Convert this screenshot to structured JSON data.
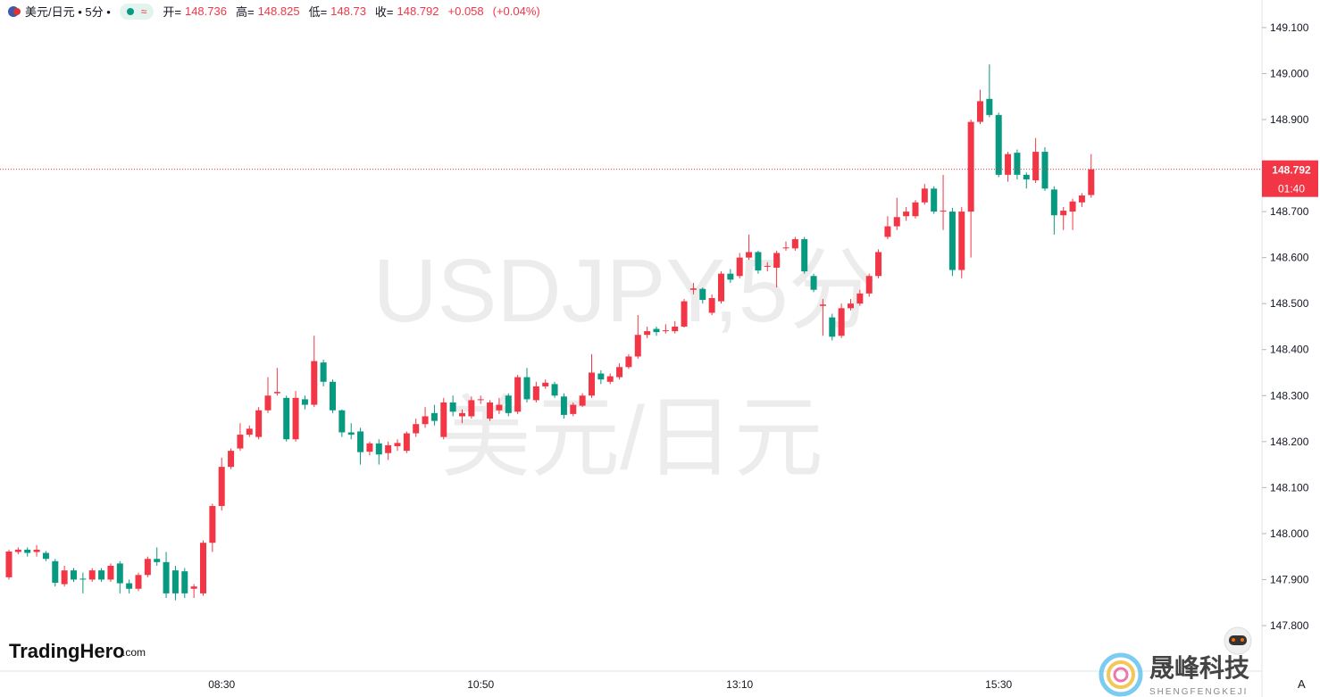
{
  "header": {
    "title": "美元/日元 • 5分 •",
    "open_label": "开=",
    "high_label": "高=",
    "low_label": "低=",
    "close_label": "收=",
    "change": "+0.058",
    "change_pct": "(+0.04%)"
  },
  "watermark": {
    "symbol": "USDJPY,5分",
    "name": "美元/日元"
  },
  "branding": {
    "left_brand": "TradingHero",
    "left_domain": ".com",
    "right_brand": "晟峰科技",
    "right_sub": "SHENGFENGKEJI",
    "auto_button": "A"
  },
  "chart_data": {
    "type": "candlestick",
    "up_color": "#f23645",
    "down_color": "#089981",
    "countdown": "01:40",
    "categories": [
      null,
      null,
      null,
      null,
      null,
      null,
      null,
      null,
      null,
      null,
      null,
      null,
      null,
      null,
      null,
      null,
      null,
      null,
      null,
      null,
      null,
      null,
      null,
      "08:30",
      null,
      null,
      null,
      null,
      null,
      null,
      null,
      null,
      null,
      null,
      null,
      null,
      null,
      null,
      null,
      null,
      null,
      null,
      null,
      null,
      null,
      null,
      null,
      null,
      null,
      null,
      null,
      "10:50",
      null,
      null,
      null,
      null,
      null,
      null,
      null,
      null,
      null,
      null,
      null,
      null,
      null,
      null,
      null,
      null,
      null,
      null,
      null,
      null,
      null,
      null,
      null,
      null,
      null,
      null,
      null,
      "13:10",
      null,
      null,
      null,
      null,
      null,
      null,
      null,
      null,
      null,
      null,
      null,
      null,
      null,
      null,
      null,
      null,
      null,
      null,
      null,
      null,
      null,
      null,
      null,
      null,
      null,
      null,
      null,
      "15:30",
      null,
      null,
      null,
      null,
      null,
      null,
      null,
      null,
      null,
      null
    ],
    "open": [
      147.905,
      147.96,
      147.965,
      147.96,
      147.958,
      147.94,
      147.89,
      147.92,
      147.902,
      147.9,
      147.92,
      147.9,
      147.935,
      147.892,
      147.88,
      147.91,
      147.945,
      147.938,
      147.92,
      147.918,
      147.88,
      147.87,
      147.98,
      148.06,
      148.145,
      148.185,
      148.215,
      148.21,
      148.268,
      148.305,
      148.295,
      148.205,
      148.292,
      148.28,
      148.372,
      148.33,
      148.268,
      148.22,
      148.222,
      148.178,
      148.196,
      148.175,
      148.19,
      148.18,
      148.218,
      148.238,
      148.262,
      148.21,
      148.285,
      148.255,
      148.255,
      148.29,
      148.25,
      148.268,
      148.3,
      148.265,
      148.34,
      148.29,
      148.32,
      148.325,
      148.298,
      148.26,
      148.278,
      148.3,
      148.348,
      148.33,
      148.34,
      148.362,
      148.385,
      148.432,
      148.445,
      148.44,
      148.44,
      148.45,
      148.53,
      148.532,
      148.48,
      148.505,
      148.565,
      148.56,
      148.6,
      148.612,
      148.58,
      148.578,
      148.62,
      148.62,
      148.64,
      148.56,
      148.495,
      148.47,
      148.43,
      148.49,
      148.5,
      148.522,
      148.56,
      148.645,
      148.668,
      148.69,
      148.69,
      148.72,
      148.75,
      148.7,
      148.7,
      148.573,
      148.7,
      148.895,
      148.945,
      148.91,
      148.78,
      148.828,
      148.78,
      148.768,
      148.83,
      148.748,
      148.692,
      148.7,
      148.72,
      148.736
    ],
    "high": [
      147.965,
      147.97,
      147.97,
      147.975,
      147.962,
      147.945,
      147.93,
      147.925,
      147.915,
      147.925,
      147.925,
      147.935,
      147.94,
      147.9,
      147.915,
      147.95,
      147.97,
      147.96,
      147.93,
      147.925,
      147.89,
      147.985,
      148.065,
      148.165,
      148.185,
      148.24,
      148.235,
      148.275,
      148.34,
      148.36,
      148.3,
      148.31,
      148.3,
      148.43,
      148.378,
      148.335,
      148.27,
      148.24,
      148.23,
      148.2,
      148.205,
      148.2,
      148.205,
      148.222,
      148.25,
      148.275,
      148.28,
      148.295,
      148.3,
      148.27,
      148.298,
      148.3,
      148.29,
      148.295,
      148.305,
      148.345,
      148.36,
      148.33,
      148.335,
      148.33,
      148.305,
      148.285,
      148.305,
      148.39,
      148.355,
      148.348,
      148.37,
      148.39,
      148.475,
      148.45,
      148.45,
      148.455,
      148.462,
      148.51,
      148.545,
      148.535,
      148.52,
      148.57,
      148.575,
      148.61,
      148.65,
      148.615,
      148.59,
      148.615,
      148.635,
      148.645,
      148.645,
      148.565,
      148.51,
      148.478,
      148.5,
      148.51,
      148.53,
      148.565,
      148.618,
      148.69,
      148.73,
      148.71,
      148.725,
      148.76,
      148.755,
      148.78,
      148.708,
      148.71,
      148.9,
      148.965,
      149.02,
      148.915,
      148.83,
      148.835,
      148.785,
      148.86,
      148.84,
      148.755,
      148.71,
      148.728,
      148.74,
      148.825
    ],
    "low": [
      147.9,
      147.955,
      147.95,
      147.95,
      147.94,
      147.885,
      147.885,
      147.895,
      147.87,
      147.895,
      147.895,
      147.895,
      147.87,
      147.87,
      147.875,
      147.905,
      147.93,
      147.86,
      147.855,
      147.86,
      147.86,
      147.865,
      147.96,
      148.05,
      148.14,
      148.18,
      148.21,
      148.205,
      148.262,
      148.3,
      148.2,
      148.2,
      148.27,
      148.275,
      148.32,
      148.262,
      148.21,
      148.205,
      148.15,
      148.17,
      148.15,
      148.16,
      148.18,
      148.175,
      148.21,
      148.23,
      148.235,
      148.205,
      148.255,
      148.24,
      148.25,
      148.282,
      148.245,
      148.26,
      148.255,
      148.26,
      148.285,
      148.285,
      148.315,
      148.295,
      148.25,
      148.255,
      148.275,
      148.295,
      148.325,
      148.325,
      148.335,
      148.358,
      148.38,
      148.425,
      148.43,
      148.435,
      148.435,
      148.448,
      148.52,
      148.5,
      148.475,
      148.5,
      148.545,
      148.555,
      148.595,
      148.565,
      148.57,
      148.535,
      148.615,
      148.615,
      148.565,
      148.525,
      148.43,
      148.42,
      148.425,
      148.485,
      148.495,
      148.515,
      148.555,
      148.64,
      148.66,
      148.68,
      148.685,
      148.715,
      148.695,
      148.66,
      148.56,
      148.555,
      148.6,
      148.89,
      148.905,
      148.775,
      148.765,
      148.77,
      148.75,
      148.762,
      148.745,
      148.65,
      148.66,
      148.66,
      148.71,
      148.73
    ],
    "close": [
      147.961,
      147.965,
      147.958,
      147.965,
      147.945,
      147.893,
      147.92,
      147.9,
      147.9,
      147.92,
      147.9,
      147.93,
      147.892,
      147.88,
      147.91,
      147.945,
      147.938,
      147.87,
      147.87,
      147.87,
      147.885,
      147.98,
      148.06,
      148.145,
      148.18,
      148.215,
      148.228,
      148.268,
      148.3,
      148.308,
      148.205,
      148.295,
      148.28,
      148.375,
      148.33,
      148.268,
      148.22,
      148.215,
      148.177,
      148.196,
      148.172,
      148.192,
      148.197,
      148.218,
      148.238,
      148.255,
      148.245,
      148.285,
      148.265,
      148.262,
      148.29,
      148.292,
      148.285,
      148.28,
      148.262,
      148.34,
      148.292,
      148.32,
      148.328,
      148.3,
      148.258,
      148.28,
      148.3,
      148.35,
      148.335,
      148.342,
      148.362,
      148.385,
      148.432,
      148.44,
      148.438,
      148.442,
      148.45,
      148.505,
      148.533,
      148.508,
      148.512,
      148.565,
      148.552,
      148.6,
      148.612,
      148.572,
      148.582,
      148.61,
      148.622,
      148.64,
      148.57,
      148.53,
      148.498,
      148.428,
      148.49,
      148.5,
      148.522,
      148.56,
      148.612,
      148.668,
      148.688,
      148.7,
      148.72,
      148.75,
      148.7,
      148.702,
      148.573,
      148.7,
      148.895,
      148.94,
      148.91,
      148.78,
      148.825,
      148.78,
      148.77,
      148.83,
      148.75,
      148.692,
      148.702,
      148.722,
      148.735,
      148.792
    ],
    "ylim": [
      147.701,
      149.16
    ],
    "yticks": [
      {
        "value": 147.8,
        "label": "147.800"
      },
      {
        "value": 147.9,
        "label": "147.900"
      },
      {
        "value": 148.0,
        "label": "148.000"
      },
      {
        "value": 148.1,
        "label": "148.100"
      },
      {
        "value": 148.2,
        "label": "148.200"
      },
      {
        "value": 148.3,
        "label": "148.300"
      },
      {
        "value": 148.4,
        "label": "148.400"
      },
      {
        "value": 148.5,
        "label": "148.500"
      },
      {
        "value": 148.6,
        "label": "148.600"
      },
      {
        "value": 148.7,
        "label": "148.700"
      },
      {
        "value": 148.8,
        "label": "148.800"
      },
      {
        "value": 148.9,
        "label": "148.900"
      },
      {
        "value": 149.0,
        "label": "149.000"
      },
      {
        "value": 149.1,
        "label": "149.100"
      }
    ]
  }
}
